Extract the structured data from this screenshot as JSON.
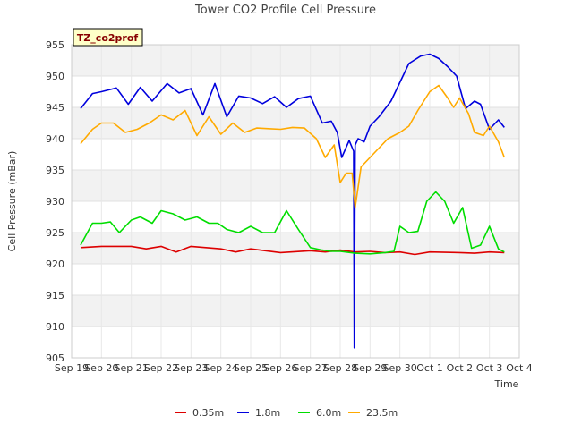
{
  "chart_data": {
    "type": "line",
    "title": "Tower CO2 Profile Cell Pressure",
    "badge": "TZ_co2prof",
    "xlabel": "Time",
    "ylabel": "Cell Pressure (mBar)",
    "ylim": [
      905,
      955
    ],
    "yticks": [
      905,
      910,
      915,
      920,
      925,
      930,
      935,
      940,
      945,
      950,
      955
    ],
    "xlim": [
      0,
      15
    ],
    "xticks": [
      {
        "x": 0,
        "label": "Sep 19"
      },
      {
        "x": 1,
        "label": "Sep 20"
      },
      {
        "x": 2,
        "label": "Sep 21"
      },
      {
        "x": 3,
        "label": "Sep 22"
      },
      {
        "x": 4,
        "label": "Sep 23"
      },
      {
        "x": 5,
        "label": "Sep 24"
      },
      {
        "x": 6,
        "label": "Sep 25"
      },
      {
        "x": 7,
        "label": "Sep 26"
      },
      {
        "x": 8,
        "label": "Sep 27"
      },
      {
        "x": 9,
        "label": "Sep 28"
      },
      {
        "x": 10,
        "label": "Sep 29"
      },
      {
        "x": 11,
        "label": "Sep 30"
      },
      {
        "x": 12,
        "label": "Oct 1"
      },
      {
        "x": 13,
        "label": "Oct 2"
      },
      {
        "x": 14,
        "label": "Oct 3"
      },
      {
        "x": 15,
        "label": "Oct 4"
      }
    ],
    "grid": true,
    "legend_position": "bottom",
    "background_bands": "#f2f2f2",
    "series": [
      {
        "name": "0.35m",
        "color": "#dd0000",
        "x": [
          0.3,
          1,
          2,
          2.5,
          3,
          3.5,
          4,
          5,
          5.5,
          6,
          7,
          8,
          8.5,
          9,
          9.5,
          10,
          10.5,
          11,
          11.5,
          12,
          13,
          13.5,
          14,
          14.5
        ],
        "y": [
          922.6,
          922.8,
          922.8,
          922.4,
          922.8,
          921.9,
          922.8,
          922.4,
          921.9,
          922.4,
          921.8,
          922.1,
          921.9,
          922.2,
          921.9,
          922.0,
          921.8,
          921.9,
          921.5,
          921.9,
          921.8,
          921.7,
          921.9,
          921.8
        ]
      },
      {
        "name": "1.8m",
        "color": "#0000dd",
        "x": [
          0.3,
          0.7,
          1,
          1.5,
          1.9,
          2.3,
          2.7,
          3.2,
          3.6,
          4,
          4.4,
          4.8,
          5.2,
          5.6,
          6,
          6.4,
          6.8,
          7.2,
          7.6,
          8,
          8.4,
          8.7,
          8.9,
          9.05,
          9.3,
          9.45,
          9.47,
          9.5,
          9.6,
          9.8,
          10,
          10.3,
          10.7,
          11,
          11.3,
          11.7,
          12,
          12.3,
          12.6,
          12.9,
          13.2,
          13.5,
          13.7,
          14,
          14.3,
          14.5
        ],
        "y": [
          944.8,
          947.2,
          947.5,
          948.1,
          945.5,
          948.2,
          946.0,
          948.8,
          947.3,
          948.0,
          943.8,
          948.8,
          943.5,
          946.8,
          946.5,
          945.6,
          946.7,
          945.0,
          946.4,
          946.8,
          942.5,
          942.8,
          941.0,
          937.0,
          939.7,
          938.0,
          906.6,
          939.0,
          940.0,
          939.5,
          942.0,
          943.5,
          946.0,
          949.0,
          952.0,
          953.2,
          953.5,
          952.8,
          951.5,
          950.0,
          944.8,
          946.0,
          945.5,
          941.5,
          943.0,
          941.8
        ]
      },
      {
        "name": "6.0m",
        "color": "#00dd00",
        "x": [
          0.3,
          0.7,
          1,
          1.3,
          1.6,
          2,
          2.3,
          2.7,
          3,
          3.4,
          3.8,
          4.2,
          4.6,
          4.9,
          5.2,
          5.6,
          6,
          6.4,
          6.8,
          7.2,
          7.6,
          8,
          8.4,
          8.7,
          9,
          9.5,
          10,
          10.5,
          10.8,
          11,
          11.3,
          11.6,
          11.9,
          12.2,
          12.5,
          12.8,
          13.1,
          13.4,
          13.7,
          14,
          14.3,
          14.5
        ],
        "y": [
          923.0,
          926.5,
          926.5,
          926.7,
          925.0,
          927.0,
          927.5,
          926.5,
          928.5,
          928.0,
          927.0,
          927.5,
          926.5,
          926.5,
          925.5,
          925.0,
          926.0,
          925.0,
          925.0,
          928.5,
          925.5,
          922.6,
          922.2,
          922.0,
          922.0,
          921.7,
          921.6,
          921.8,
          922.0,
          926.0,
          925.0,
          925.2,
          930.0,
          931.5,
          930.0,
          926.5,
          929.0,
          922.5,
          923.0,
          926.0,
          922.4,
          921.9
        ]
      },
      {
        "name": "23.5m",
        "color": "#ffaa00",
        "x": [
          0.3,
          0.7,
          1,
          1.4,
          1.8,
          2.2,
          2.6,
          3,
          3.4,
          3.8,
          4.2,
          4.6,
          5,
          5.4,
          5.8,
          6.2,
          6.6,
          7,
          7.4,
          7.8,
          8.2,
          8.5,
          8.8,
          9,
          9.2,
          9.4,
          9.5,
          9.7,
          10,
          10.3,
          10.6,
          11,
          11.3,
          11.6,
          12,
          12.3,
          12.6,
          12.8,
          13,
          13.3,
          13.5,
          13.8,
          14,
          14.3,
          14.5
        ],
        "y": [
          939.2,
          941.5,
          942.5,
          942.5,
          941.0,
          941.5,
          942.5,
          943.8,
          943.0,
          944.5,
          940.5,
          943.5,
          940.7,
          942.5,
          941.0,
          941.7,
          941.6,
          941.5,
          941.8,
          941.7,
          940.0,
          937.0,
          939.0,
          933.0,
          934.5,
          934.5,
          929.0,
          935.5,
          937.0,
          938.5,
          940.0,
          941.0,
          942.0,
          944.5,
          947.5,
          948.5,
          946.5,
          945.0,
          946.5,
          944.0,
          941.0,
          940.5,
          942.0,
          939.5,
          937.0
        ]
      }
    ]
  }
}
